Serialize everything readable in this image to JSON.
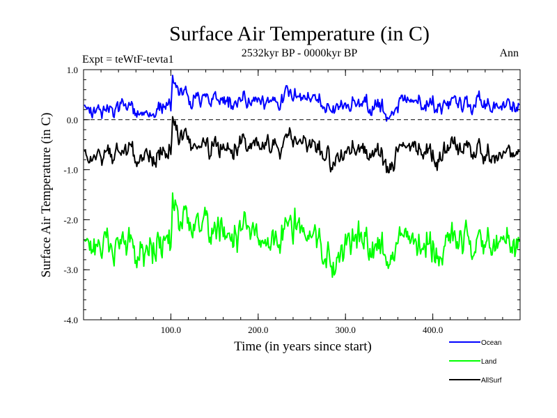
{
  "chart_data": {
    "type": "line",
    "title": "Surface Air Temperature (in C)",
    "subtitle_left": "Expt = teWtF-tevta1",
    "subtitle_center": "2532kyr BP - 0000kyr BP",
    "subtitle_right": "Ann",
    "xlabel": "Time (in years since start)",
    "ylabel": "Surface Air Temperature (in C)",
    "xlim": [
      0,
      500
    ],
    "ylim": [
      -4.0,
      1.0
    ],
    "x_ticks": [
      100,
      200,
      300,
      400
    ],
    "x_tick_labels": [
      "100.0",
      "200.0",
      "300.0",
      "400.0"
    ],
    "y_ticks": [
      1.0,
      0.0,
      -1.0,
      -2.0,
      -3.0,
      -4.0
    ],
    "y_tick_labels": [
      "1.0",
      "0.0",
      "-1.0",
      "-2.0",
      "-3.0",
      "-4.0"
    ],
    "reference_line": {
      "y": 0.0,
      "style": "dashed"
    },
    "x": [
      0,
      20,
      40,
      60,
      80,
      100,
      102,
      110,
      120,
      140,
      160,
      180,
      200,
      220,
      240,
      260,
      280,
      285,
      300,
      320,
      340,
      350,
      360,
      380,
      400,
      405,
      420,
      440,
      460,
      480,
      500
    ],
    "series": [
      {
        "name": "Ocean",
        "color": "#0000ff",
        "values": [
          0.25,
          0.2,
          0.25,
          0.2,
          0.15,
          0.3,
          0.9,
          0.55,
          0.45,
          0.4,
          0.35,
          0.35,
          0.4,
          0.3,
          0.55,
          0.4,
          0.3,
          0.2,
          0.3,
          0.35,
          0.25,
          0.05,
          0.3,
          0.35,
          0.35,
          0.15,
          0.4,
          0.35,
          0.3,
          0.25,
          0.35
        ]
      },
      {
        "name": "Land",
        "color": "#00ff00",
        "values": [
          -2.5,
          -2.45,
          -2.5,
          -2.55,
          -2.6,
          -2.4,
          -1.45,
          -1.95,
          -2.1,
          -2.2,
          -2.25,
          -2.3,
          -2.3,
          -2.4,
          -2.0,
          -2.35,
          -2.5,
          -3.0,
          -2.4,
          -2.4,
          -2.45,
          -2.9,
          -2.4,
          -2.45,
          -2.4,
          -2.8,
          -2.35,
          -2.4,
          -2.45,
          -2.5,
          -2.45
        ]
      },
      {
        "name": "AllSurf",
        "color": "#000000",
        "values": [
          -0.7,
          -0.7,
          -0.65,
          -0.7,
          -0.75,
          -0.6,
          0.0,
          -0.35,
          -0.45,
          -0.55,
          -0.6,
          -0.55,
          -0.5,
          -0.6,
          -0.3,
          -0.5,
          -0.65,
          -0.9,
          -0.6,
          -0.6,
          -0.65,
          -1.05,
          -0.6,
          -0.6,
          -0.6,
          -0.9,
          -0.55,
          -0.6,
          -0.65,
          -0.7,
          -0.6
        ]
      }
    ],
    "legend": {
      "placement": "bottom-right",
      "entries": [
        {
          "label": "Ocean",
          "color": "#0000ff"
        },
        {
          "label": "Land",
          "color": "#00ff00"
        },
        {
          "label": "AllSurf",
          "color": "#000000"
        }
      ]
    }
  }
}
